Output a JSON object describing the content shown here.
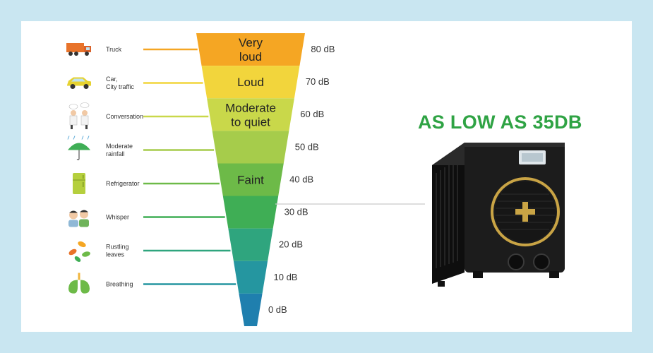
{
  "headline": "AS LOW AS 35DB",
  "levels": [
    {
      "db_label": "80 dB",
      "source": [
        "Truck"
      ],
      "band_text": [
        "Very",
        "loud"
      ],
      "icon": "truck-icon",
      "color": "#f5a623"
    },
    {
      "db_label": "70 dB",
      "source": [
        "Car,",
        "City traffic"
      ],
      "band_text": [
        "Loud"
      ],
      "icon": "car-icon",
      "color": "#f2d53c"
    },
    {
      "db_label": "60 dB",
      "source": [
        "Conversation"
      ],
      "band_text": [
        "Moderate",
        "to quiet"
      ],
      "icon": "conversation-icon",
      "color": "#c9d84a"
    },
    {
      "db_label": "50 dB",
      "source": [
        "Moderate",
        "rainfall"
      ],
      "band_text": [],
      "icon": "umbrella-rain-icon",
      "color": "#a6cc4b"
    },
    {
      "db_label": "40 dB",
      "source": [
        "Refrigerator"
      ],
      "band_text": [
        "Faint"
      ],
      "icon": "refrigerator-icon",
      "color": "#6dba48"
    },
    {
      "db_label": "30 dB",
      "source": [
        "Whisper"
      ],
      "band_text": [],
      "icon": "whisper-icon",
      "color": "#3fae55"
    },
    {
      "db_label": "20 dB",
      "source": [
        "Rustling",
        "leaves"
      ],
      "band_text": [],
      "icon": "leaves-icon",
      "color": "#2fa57e"
    },
    {
      "db_label": "10 dB",
      "source": [
        "Breathing"
      ],
      "band_text": [],
      "icon": "lungs-icon",
      "color": "#2596a0"
    },
    {
      "db_label": "0 dB",
      "source": [],
      "band_text": [],
      "icon": "",
      "color": "#1f7fae"
    }
  ],
  "product": {
    "icon": "heat-pump-icon",
    "body_color": "#1c1c1c",
    "ring_color": "#c9a445"
  }
}
